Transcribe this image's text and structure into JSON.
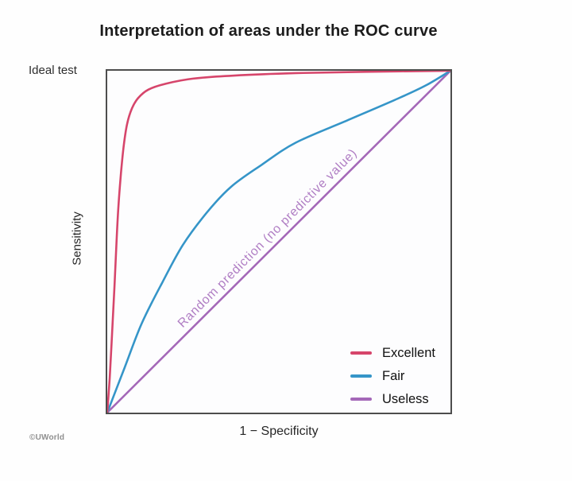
{
  "annotations": {
    "ideal_test": "Ideal test",
    "copyright": "©UWorld"
  },
  "chart_data": {
    "type": "line",
    "title": "Interpretation of areas under the ROC curve",
    "xlabel": "1 − Specificity",
    "ylabel": "Sensitivity",
    "xlim": [
      0,
      1
    ],
    "ylim": [
      0,
      1
    ],
    "grid": false,
    "axis_ticks": "none",
    "legend_position": "inside bottom-right",
    "diagonal_label": "Random prediction (no predictive value)",
    "diagonal_label_color": "#b07ec4",
    "series": [
      {
        "name": "Excellent",
        "color": "#d6456b",
        "points": [
          [
            0,
            0
          ],
          [
            0.007,
            0.1
          ],
          [
            0.014,
            0.23
          ],
          [
            0.021,
            0.37
          ],
          [
            0.027,
            0.5
          ],
          [
            0.033,
            0.61
          ],
          [
            0.04,
            0.7
          ],
          [
            0.048,
            0.78
          ],
          [
            0.058,
            0.845
          ],
          [
            0.072,
            0.89
          ],
          [
            0.09,
            0.92
          ],
          [
            0.12,
            0.945
          ],
          [
            0.17,
            0.962
          ],
          [
            0.25,
            0.977
          ],
          [
            0.37,
            0.986
          ],
          [
            0.55,
            0.993
          ],
          [
            0.75,
            0.997
          ],
          [
            1,
            1
          ]
        ]
      },
      {
        "name": "Fair",
        "color": "#3595c8",
        "points": [
          [
            0,
            0
          ],
          [
            0.05,
            0.13
          ],
          [
            0.1,
            0.26
          ],
          [
            0.16,
            0.38
          ],
          [
            0.22,
            0.49
          ],
          [
            0.29,
            0.585
          ],
          [
            0.36,
            0.66
          ],
          [
            0.45,
            0.725
          ],
          [
            0.55,
            0.79
          ],
          [
            0.7,
            0.855
          ],
          [
            0.85,
            0.92
          ],
          [
            0.93,
            0.958
          ],
          [
            1,
            1
          ]
        ]
      },
      {
        "name": "Useless",
        "color": "#a468b8",
        "points": [
          [
            0,
            0
          ],
          [
            1,
            1
          ]
        ]
      }
    ]
  }
}
